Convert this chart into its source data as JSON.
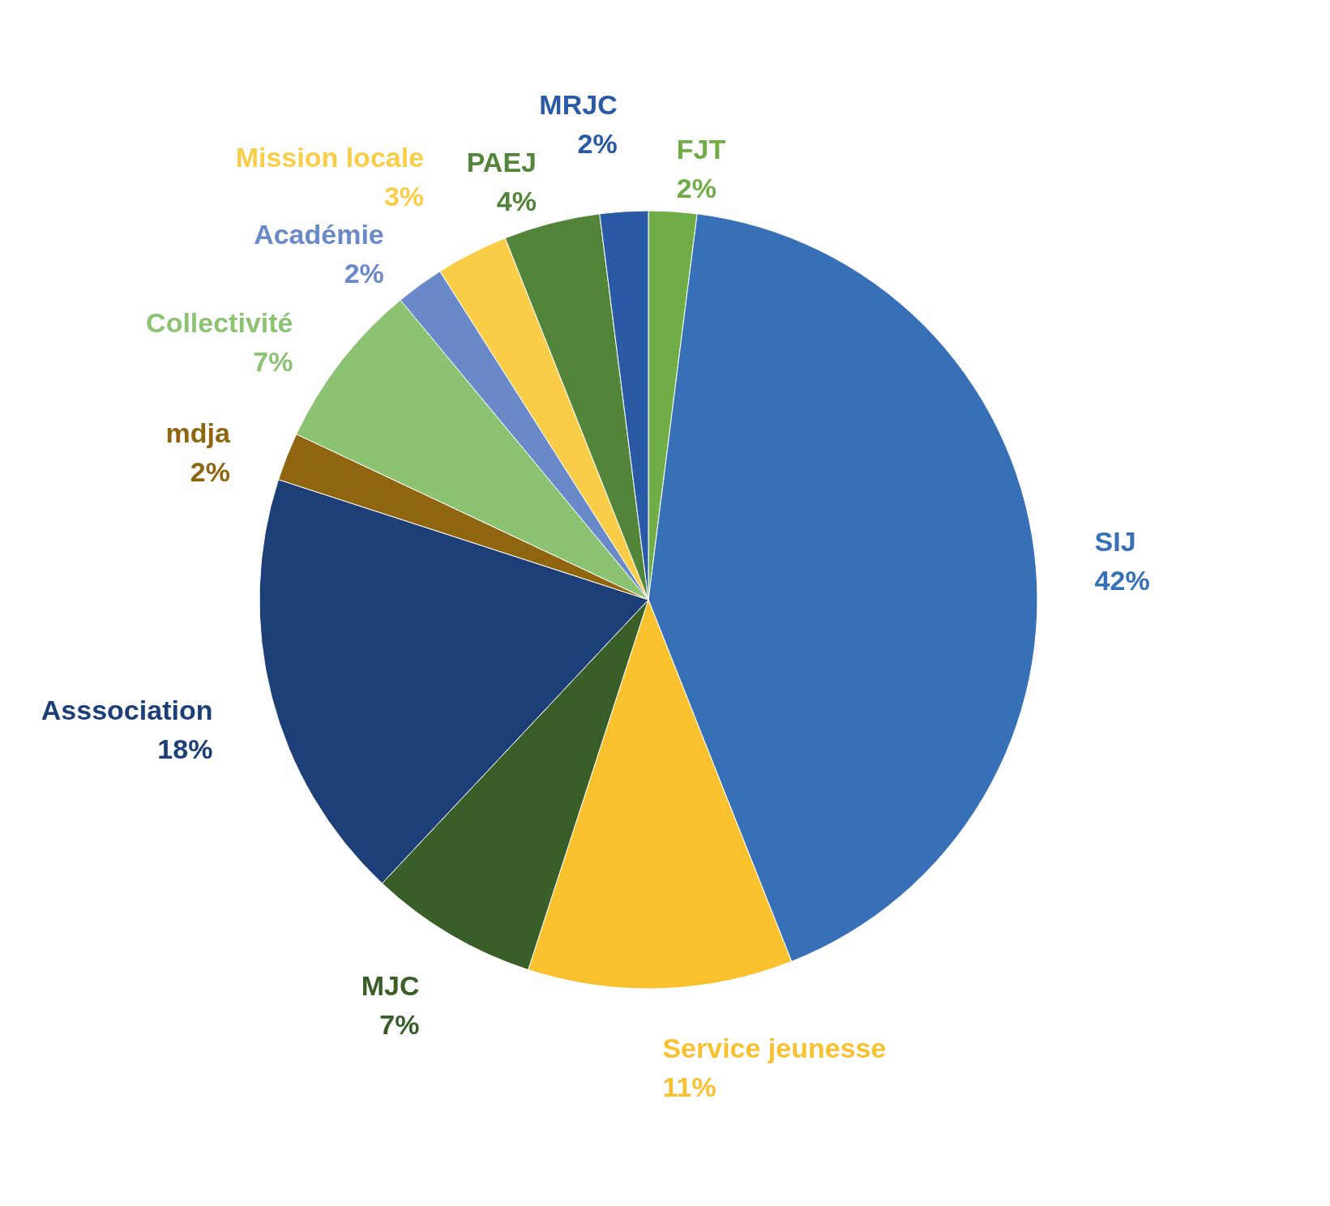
{
  "chart_data": {
    "type": "pie",
    "categories": [
      "FJT",
      "SIJ",
      "Service jeunesse",
      "MJC",
      "Asssociation",
      "mdja",
      "Collectivité",
      "Académie",
      "Mission locale",
      "PAEJ",
      "MRJC"
    ],
    "values": [
      2,
      42,
      11,
      7,
      18,
      2,
      7,
      2,
      3,
      4,
      2
    ],
    "value_labels": [
      "2%",
      "42%",
      "11%",
      "7%",
      "18%",
      "2%",
      "7%",
      "2%",
      "3%",
      "4%",
      "2%"
    ],
    "colors": [
      "#70ad47",
      "#3870b8",
      "#f9c12e",
      "#3a5e27",
      "#1d3f78",
      "#8f6510",
      "#8cc373",
      "#6a89c8",
      "#f9cd47",
      "#52853a",
      "#2a5aa5"
    ]
  }
}
